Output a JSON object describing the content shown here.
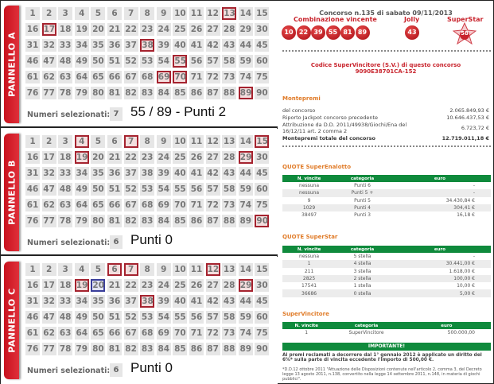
{
  "panels": [
    {
      "label": "PANNELLO A",
      "marked": [
        13,
        17,
        38,
        55,
        69,
        70,
        89
      ],
      "blue": [],
      "selected_label": "Numeri selezionati:",
      "selected_count": "7",
      "result": "55 / 89 - Punti 2"
    },
    {
      "label": "PANNELLO B",
      "marked": [
        4,
        7,
        15,
        19,
        29,
        90
      ],
      "blue": [],
      "selected_label": "Numeri selezionati:",
      "selected_count": "6",
      "result": "Punti 0"
    },
    {
      "label": "PANNELLO C",
      "marked": [
        6,
        7,
        12,
        19,
        29,
        38
      ],
      "blue": [
        20
      ],
      "selected_label": "Numeri selezionati:",
      "selected_count": "6",
      "result": "Punti 0"
    }
  ],
  "draw": {
    "title": "Concorso n.135 di sabato 09/11/2013",
    "combo_label": "Combinazione vincente",
    "numbers": [
      "10",
      "22",
      "39",
      "55",
      "81",
      "89"
    ],
    "jolly_label": "Jolly",
    "jolly": "43",
    "superstar_label": "SuperStar",
    "superstar": "58",
    "code_label": "Codice SuperVincitore (S.V.) di questo concorso",
    "code": "9090E38701CA-152"
  },
  "montepremi": {
    "title": "Montepremi",
    "rows": [
      {
        "label": "del concorso",
        "value": "2.065.849,93 €"
      },
      {
        "label": "Riporto Jackpot concorso precedente",
        "value": "10.646.437,53 €"
      },
      {
        "label": "Attribuzione da D.D. 2011/49938/Giochi/Ena del 16/12/11 art. 2 comma 2",
        "value": "6.723,72 €"
      }
    ],
    "total_label": "Montepremi totale del concorso",
    "total": "12.719.011,18 €"
  },
  "quote_se": {
    "title": "QUOTE SuperEnalotto",
    "headers": [
      "N. vincite",
      "categoria",
      "euro"
    ],
    "rows": [
      [
        "nessuna",
        "Punti 6",
        "-"
      ],
      [
        "nessuna",
        "Punti 5 +",
        "-"
      ],
      [
        "9",
        "Punti 5",
        "34.430,84 €"
      ],
      [
        "1029",
        "Punti 4",
        "304,41 €"
      ],
      [
        "38497",
        "Punti 3",
        "16,18 €"
      ]
    ]
  },
  "quote_ss": {
    "title": "QUOTE SuperStar",
    "headers": [
      "N. vincite",
      "categoria",
      "euro"
    ],
    "rows": [
      [
        "nessuna",
        "5 stella",
        "-"
      ],
      [
        "1",
        "4 stella",
        "30.441,00 €"
      ],
      [
        "211",
        "3 stella",
        "1.618,00 €"
      ],
      [
        "2825",
        "2 stella",
        "100,00 €"
      ],
      [
        "17541",
        "1 stella",
        "10,00 €"
      ],
      [
        "36686",
        "0 stella",
        "5,00 €"
      ]
    ]
  },
  "supervincitore": {
    "title": "SuperVincitore",
    "headers": [
      "N. vincite",
      "categoria",
      "euro"
    ],
    "rows": [
      [
        "1",
        "SuperVincitore",
        "500.000,00"
      ]
    ]
  },
  "important": {
    "title": "IMPORTANTE!",
    "text": "Ai premi reclamati a decorrere dal 1° gennaio 2012 è applicato un diritto del 6%* sulla parte di vincita eccedente l'importo di 500,00 €.",
    "note": "*D.D.12 ottobre 2011 \"Attuazione delle Disposizioni contenute nell'articolo 2, comma 3, del Decreto legge 13 agosto 2011, n.138, convertito nella legge 14 settembre 2011, n.148, in materia di giochi pubblici\"."
  }
}
